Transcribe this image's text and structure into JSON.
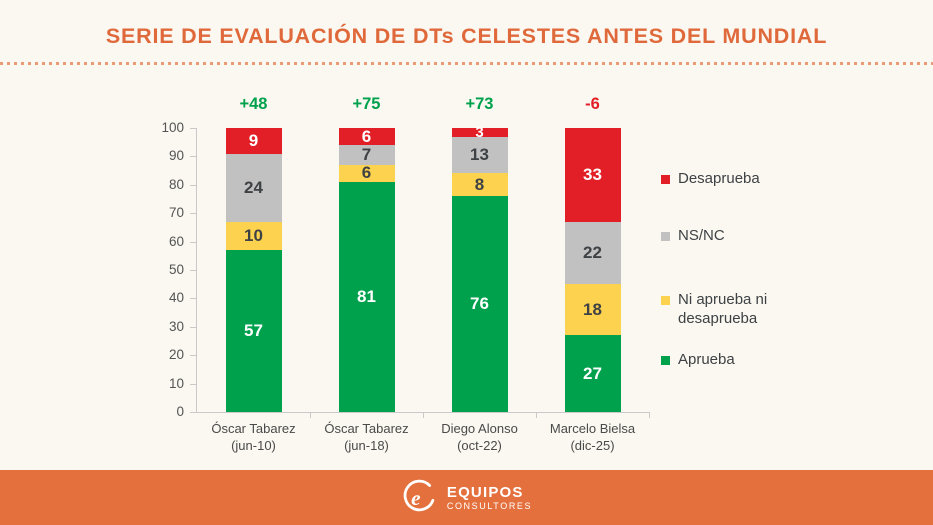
{
  "title": "SERIE DE EVALUACIÓN DE DTs CELESTES ANTES DEL MUNDIAL",
  "colors": {
    "accent_orange": "#E0693C",
    "footer_orange": "#E4713D",
    "dotted_rule": "#EA9B75",
    "approve_green": "#00A14D",
    "disapprove_red": "#E21F26",
    "neutral_yellow": "#FDD24E",
    "nsnc_gray": "#C1C1C1",
    "background": "#FAF8F0",
    "dark_text": "#3E4245",
    "axis_gray": "#C9C9C9"
  },
  "chart_data": {
    "type": "bar",
    "stacked": true,
    "title": "SERIE DE EVALUACIÓN DE DTs CELESTES ANTES DEL MUNDIAL",
    "categories": [
      {
        "name": "Óscar Tabarez",
        "period": "(jun-10)"
      },
      {
        "name": "Óscar Tabarez",
        "period": "(jun-18)"
      },
      {
        "name": "Diego Alonso",
        "period": "(oct-22)"
      },
      {
        "name": "Marcelo Bielsa",
        "period": "(dic-25)"
      }
    ],
    "series": [
      {
        "name": "Aprueba",
        "color": "#00A14D",
        "label_color": "#FFFFFF",
        "values": [
          57,
          81,
          76,
          27
        ]
      },
      {
        "name": "Ni aprueba ni desaprueba",
        "color": "#FDD24E",
        "label_color": "#3E4245",
        "values": [
          10,
          6,
          8,
          18
        ]
      },
      {
        "name": "NS/NC",
        "color": "#C1C1C1",
        "label_color": "#3E4245",
        "values": [
          24,
          7,
          13,
          22
        ]
      },
      {
        "name": "Desaprueba",
        "color": "#E21F26",
        "label_color": "#FFFFFF",
        "values": [
          9,
          6,
          3,
          33
        ]
      }
    ],
    "net_labels": [
      "+48",
      "+75",
      "+73",
      "-6"
    ],
    "net_positive_color": "#00A14D",
    "net_negative_color": "#E21F26",
    "ylim": [
      0,
      100
    ],
    "y_ticks": [
      0,
      10,
      20,
      30,
      40,
      50,
      60,
      70,
      80,
      90,
      100
    ],
    "grid": false,
    "legend_position": "right",
    "legend": [
      {
        "label": "Desaprueba",
        "color": "#E21F26"
      },
      {
        "label": "NS/NC",
        "color": "#C1C1C1"
      },
      {
        "label": "Ni aprueba ni desaprueba",
        "color": "#FDD24E"
      },
      {
        "label": "Aprueba",
        "color": "#00A14D"
      }
    ]
  },
  "footer": {
    "brand": "EQUIPOS",
    "brand_sub": "CONSULTORES",
    "logo_icon": "equipos-e-icon"
  }
}
